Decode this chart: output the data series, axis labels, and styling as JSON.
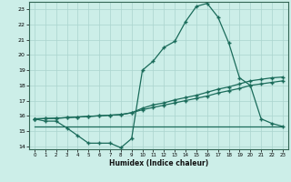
{
  "xlabel": "Humidex (Indice chaleur)",
  "bg_color": "#cceee8",
  "grid_color": "#aad4ce",
  "line_color": "#1a6b5a",
  "xlim": [
    -0.5,
    23.5
  ],
  "ylim": [
    13.8,
    23.5
  ],
  "yticks": [
    14,
    15,
    16,
    17,
    18,
    19,
    20,
    21,
    22,
    23
  ],
  "xticks": [
    0,
    1,
    2,
    3,
    4,
    5,
    6,
    7,
    8,
    9,
    10,
    11,
    12,
    13,
    14,
    15,
    16,
    17,
    18,
    19,
    20,
    21,
    22,
    23
  ],
  "x_vals": [
    0,
    1,
    2,
    3,
    4,
    5,
    6,
    7,
    8,
    9,
    10,
    11,
    12,
    13,
    14,
    15,
    16,
    17,
    18,
    19,
    20,
    21,
    22,
    23
  ],
  "line1": [
    15.8,
    15.65,
    15.65,
    15.2,
    14.7,
    14.2,
    14.2,
    14.2,
    13.9,
    14.5,
    19.0,
    19.6,
    20.5,
    20.9,
    22.2,
    23.2,
    23.4,
    22.5,
    20.8,
    18.5,
    18.0,
    15.8,
    15.5,
    15.3
  ],
  "line2": [
    15.8,
    15.82,
    15.84,
    15.88,
    15.92,
    15.96,
    16.0,
    16.04,
    16.08,
    16.2,
    16.4,
    16.55,
    16.7,
    16.85,
    17.0,
    17.15,
    17.3,
    17.5,
    17.65,
    17.8,
    18.0,
    18.1,
    18.2,
    18.3
  ],
  "line3": [
    15.8,
    15.82,
    15.84,
    15.88,
    15.92,
    15.96,
    16.0,
    16.04,
    16.08,
    16.2,
    16.5,
    16.72,
    16.85,
    17.05,
    17.2,
    17.35,
    17.55,
    17.75,
    17.9,
    18.1,
    18.3,
    18.4,
    18.5,
    18.55
  ],
  "line4": [
    15.3,
    15.3,
    15.3,
    15.3,
    15.3,
    15.3,
    15.3,
    15.3,
    15.3,
    15.3,
    15.3,
    15.3,
    15.3,
    15.3,
    15.3,
    15.3,
    15.3,
    15.3,
    15.3,
    15.3,
    15.3,
    15.3,
    15.3,
    15.3
  ]
}
